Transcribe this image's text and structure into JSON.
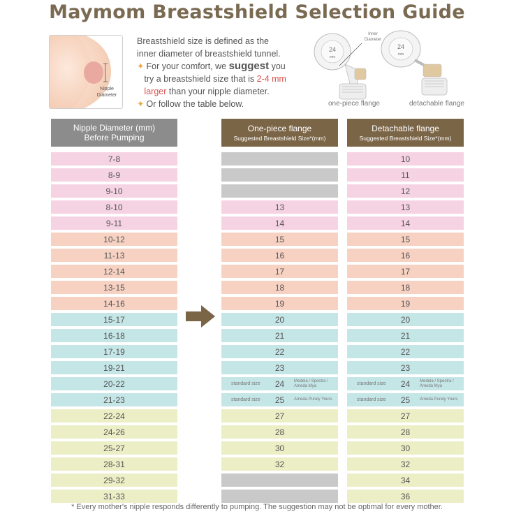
{
  "title": "Maymom Breastshield Selection Guide",
  "illustration": {
    "nipple_label": "Nipple Diameter"
  },
  "description": {
    "line1": "Breastshield size is defined as the",
    "line2": "inner diameter of breastshield tunnel.",
    "line3a": "For your comfort, we ",
    "line3b": "suggest",
    "line3c": " you",
    "line4a": "try a breastshield size that is ",
    "line4b": "2-4 mm",
    "line5a": "larger",
    "line5b": " than your nipple diameter.",
    "line6": "Or follow the table below."
  },
  "flange_art": {
    "size_left": "24",
    "size_right": "24",
    "unit": "mm",
    "inner_label": "Inner Diameter",
    "caption_left": "one-piece flange",
    "caption_right": "detachable flange"
  },
  "table": {
    "col1_header_line1": "Nipple Diameter (mm)",
    "col1_header_line2": "Before Pumping",
    "col2_header_line1": "One-piece flange",
    "col2_header_line2": "Suggested Breastshield Size*(mm)",
    "col3_header_line1": "Detachable flange",
    "col3_header_line2": "Suggested Breastshield Size*(mm)",
    "standard_label": "standard size",
    "brand_24": "Medela / Spectra / Ameda Mya",
    "brand_25": "Ameda Purely Yours",
    "rows": [
      {
        "nipple": "7-8",
        "one": "",
        "det": "10",
        "color": "pink"
      },
      {
        "nipple": "8-9",
        "one": "",
        "det": "11",
        "color": "pink"
      },
      {
        "nipple": "9-10",
        "one": "",
        "det": "12",
        "color": "pink"
      },
      {
        "nipple": "8-10",
        "one": "13",
        "det": "13",
        "color": "pink"
      },
      {
        "nipple": "9-11",
        "one": "14",
        "det": "14",
        "color": "pink"
      },
      {
        "nipple": "10-12",
        "one": "15",
        "det": "15",
        "color": "peach"
      },
      {
        "nipple": "11-13",
        "one": "16",
        "det": "16",
        "color": "peach"
      },
      {
        "nipple": "12-14",
        "one": "17",
        "det": "17",
        "color": "peach"
      },
      {
        "nipple": "13-15",
        "one": "18",
        "det": "18",
        "color": "peach"
      },
      {
        "nipple": "14-16",
        "one": "19",
        "det": "19",
        "color": "peach"
      },
      {
        "nipple": "15-17",
        "one": "20",
        "det": "20",
        "color": "blue"
      },
      {
        "nipple": "16-18",
        "one": "21",
        "det": "21",
        "color": "blue"
      },
      {
        "nipple": "17-19",
        "one": "22",
        "det": "22",
        "color": "blue"
      },
      {
        "nipple": "19-21",
        "one": "23",
        "det": "23",
        "color": "blue"
      },
      {
        "nipple": "20-22",
        "one": "24",
        "det": "24",
        "color": "blue"
      },
      {
        "nipple": "21-23",
        "one": "25",
        "det": "25",
        "color": "blue"
      },
      {
        "nipple": "22-24",
        "one": "27",
        "det": "27",
        "color": "yellow"
      },
      {
        "nipple": "24-26",
        "one": "28",
        "det": "28",
        "color": "yellow"
      },
      {
        "nipple": "25-27",
        "one": "30",
        "det": "30",
        "color": "yellow"
      },
      {
        "nipple": "28-31",
        "one": "32",
        "det": "32",
        "color": "yellow"
      },
      {
        "nipple": "29-32",
        "one": "",
        "det": "34",
        "color": "yellow"
      },
      {
        "nipple": "31-33",
        "one": "",
        "det": "36",
        "color": "yellow"
      }
    ]
  },
  "footnote": "* Every mother's nipple responds differently to pumping. The suggestion may not be optimal for every mother.",
  "colors": {
    "title": "#7a6a52",
    "header_gray": "#8c8c8c",
    "header_brown": "#7b6547",
    "pink": "#f6d3e2",
    "peach": "#f7d2c2",
    "blue": "#c5e6e7",
    "yellow": "#ecefc5",
    "unavailable": "#c9c9c9"
  }
}
